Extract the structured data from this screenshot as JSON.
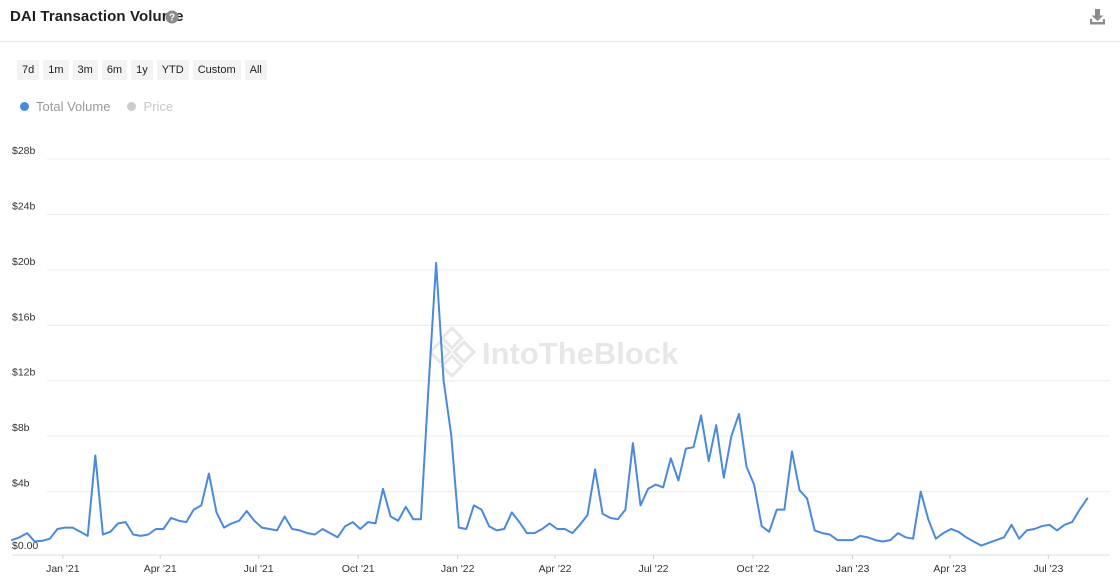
{
  "header": {
    "title": "DAI Transaction Volume",
    "help_icon": "question-circle-icon",
    "download_icon": "download-icon"
  },
  "range_buttons": [
    "7d",
    "1m",
    "3m",
    "6m",
    "1y",
    "YTD",
    "Custom",
    "All"
  ],
  "legend": [
    {
      "label": "Total Volume",
      "color": "#4a89dc",
      "active": true
    },
    {
      "label": "Price",
      "color": "#cccccc",
      "active": false
    }
  ],
  "watermark": "IntoTheBlock",
  "colors": {
    "line": "#4a89dc",
    "grid": "#ececec",
    "axis_text": "#333333"
  },
  "chart_data": {
    "type": "line",
    "title": "DAI Transaction Volume",
    "xlabel": "",
    "ylabel": "",
    "ylim": [
      0,
      28
    ],
    "yticks": [
      {
        "value": 0,
        "label": "$0.00"
      },
      {
        "value": 4,
        "label": "$4b"
      },
      {
        "value": 8,
        "label": "$8b"
      },
      {
        "value": 12,
        "label": "$12b"
      },
      {
        "value": 16,
        "label": "$16b"
      },
      {
        "value": 20,
        "label": "$20b"
      },
      {
        "value": 24,
        "label": "$24b"
      },
      {
        "value": 28,
        "label": "$28b"
      }
    ],
    "xlim": [
      "2020-11-15",
      "2023-08-27"
    ],
    "xticks": [
      {
        "date": "2021-01-01",
        "label": "Jan '21"
      },
      {
        "date": "2021-04-01",
        "label": "Apr '21"
      },
      {
        "date": "2021-07-01",
        "label": "Jul '21"
      },
      {
        "date": "2021-10-01",
        "label": "Oct '21"
      },
      {
        "date": "2022-01-01",
        "label": "Jan '22"
      },
      {
        "date": "2022-04-01",
        "label": "Apr '22"
      },
      {
        "date": "2022-07-01",
        "label": "Jul '22"
      },
      {
        "date": "2022-10-01",
        "label": "Oct '22"
      },
      {
        "date": "2023-01-01",
        "label": "Jan '23"
      },
      {
        "date": "2023-04-01",
        "label": "Apr '23"
      },
      {
        "date": "2023-07-01",
        "label": "Jul '23"
      }
    ],
    "grid": true,
    "legend_position": "top-left",
    "series": [
      {
        "name": "Total Volume",
        "color": "#4a89dc",
        "points": [
          [
            "2020-11-15",
            0.5
          ],
          [
            "2020-11-22",
            0.7
          ],
          [
            "2020-11-29",
            1.0
          ],
          [
            "2020-12-06",
            0.4
          ],
          [
            "2020-12-13",
            0.45
          ],
          [
            "2020-12-20",
            0.6
          ],
          [
            "2020-12-27",
            1.3
          ],
          [
            "2021-01-03",
            1.4
          ],
          [
            "2021-01-10",
            1.4
          ],
          [
            "2021-01-17",
            1.1
          ],
          [
            "2021-01-24",
            0.8
          ],
          [
            "2021-01-31",
            6.6
          ],
          [
            "2021-02-07",
            0.9
          ],
          [
            "2021-02-14",
            1.1
          ],
          [
            "2021-02-21",
            1.7
          ],
          [
            "2021-02-28",
            1.8
          ],
          [
            "2021-03-07",
            0.9
          ],
          [
            "2021-03-14",
            0.8
          ],
          [
            "2021-03-21",
            0.9
          ],
          [
            "2021-03-28",
            1.3
          ],
          [
            "2021-04-04",
            1.3
          ],
          [
            "2021-04-11",
            2.1
          ],
          [
            "2021-04-18",
            1.9
          ],
          [
            "2021-04-25",
            1.8
          ],
          [
            "2021-05-02",
            2.7
          ],
          [
            "2021-05-09",
            3.0
          ],
          [
            "2021-05-16",
            5.3
          ],
          [
            "2021-05-23",
            2.5
          ],
          [
            "2021-05-30",
            1.4
          ],
          [
            "2021-06-06",
            1.7
          ],
          [
            "2021-06-13",
            1.9
          ],
          [
            "2021-06-20",
            2.6
          ],
          [
            "2021-06-27",
            1.9
          ],
          [
            "2021-07-04",
            1.4
          ],
          [
            "2021-07-11",
            1.3
          ],
          [
            "2021-07-18",
            1.2
          ],
          [
            "2021-07-25",
            2.2
          ],
          [
            "2021-08-01",
            1.3
          ],
          [
            "2021-08-08",
            1.2
          ],
          [
            "2021-08-15",
            1.0
          ],
          [
            "2021-08-22",
            0.9
          ],
          [
            "2021-08-29",
            1.3
          ],
          [
            "2021-09-05",
            1.0
          ],
          [
            "2021-09-12",
            0.7
          ],
          [
            "2021-09-19",
            1.5
          ],
          [
            "2021-09-26",
            1.8
          ],
          [
            "2021-10-03",
            1.3
          ],
          [
            "2021-10-10",
            1.8
          ],
          [
            "2021-10-17",
            1.7
          ],
          [
            "2021-10-24",
            4.2
          ],
          [
            "2021-10-31",
            2.2
          ],
          [
            "2021-11-07",
            1.9
          ],
          [
            "2021-11-14",
            2.9
          ],
          [
            "2021-11-21",
            2.0
          ],
          [
            "2021-11-28",
            2.0
          ],
          [
            "2021-12-05",
            11.5
          ],
          [
            "2021-12-12",
            20.5
          ],
          [
            "2021-12-19",
            12.0
          ],
          [
            "2021-12-26",
            8.1
          ],
          [
            "2022-01-02",
            1.4
          ],
          [
            "2022-01-09",
            1.3
          ],
          [
            "2022-01-16",
            3.0
          ],
          [
            "2022-01-23",
            2.7
          ],
          [
            "2022-01-30",
            1.5
          ],
          [
            "2022-02-06",
            1.2
          ],
          [
            "2022-02-13",
            1.3
          ],
          [
            "2022-02-20",
            2.5
          ],
          [
            "2022-02-27",
            1.8
          ],
          [
            "2022-03-06",
            1.0
          ],
          [
            "2022-03-13",
            1.0
          ],
          [
            "2022-03-20",
            1.3
          ],
          [
            "2022-03-27",
            1.7
          ],
          [
            "2022-04-03",
            1.3
          ],
          [
            "2022-04-10",
            1.3
          ],
          [
            "2022-04-17",
            1.0
          ],
          [
            "2022-04-24",
            1.6
          ],
          [
            "2022-05-01",
            2.3
          ],
          [
            "2022-05-08",
            5.6
          ],
          [
            "2022-05-15",
            2.4
          ],
          [
            "2022-05-22",
            2.1
          ],
          [
            "2022-05-29",
            2.0
          ],
          [
            "2022-06-05",
            2.7
          ],
          [
            "2022-06-12",
            7.5
          ],
          [
            "2022-06-19",
            3.0
          ],
          [
            "2022-06-26",
            4.2
          ],
          [
            "2022-07-03",
            4.5
          ],
          [
            "2022-07-10",
            4.3
          ],
          [
            "2022-07-17",
            6.4
          ],
          [
            "2022-07-24",
            4.8
          ],
          [
            "2022-07-31",
            7.1
          ],
          [
            "2022-08-07",
            7.2
          ],
          [
            "2022-08-14",
            9.5
          ],
          [
            "2022-08-21",
            6.2
          ],
          [
            "2022-08-28",
            8.8
          ],
          [
            "2022-09-04",
            5.0
          ],
          [
            "2022-09-11",
            8.0
          ],
          [
            "2022-09-18",
            9.6
          ],
          [
            "2022-09-25",
            5.8
          ],
          [
            "2022-10-02",
            4.5
          ],
          [
            "2022-10-09",
            1.5
          ],
          [
            "2022-10-16",
            1.1
          ],
          [
            "2022-10-23",
            2.7
          ],
          [
            "2022-10-30",
            2.7
          ],
          [
            "2022-11-06",
            6.9
          ],
          [
            "2022-11-13",
            4.1
          ],
          [
            "2022-11-20",
            3.5
          ],
          [
            "2022-11-27",
            1.2
          ],
          [
            "2022-12-04",
            1.0
          ],
          [
            "2022-12-11",
            0.9
          ],
          [
            "2022-12-18",
            0.5
          ],
          [
            "2022-12-25",
            0.5
          ],
          [
            "2023-01-01",
            0.5
          ],
          [
            "2023-01-08",
            0.8
          ],
          [
            "2023-01-15",
            0.7
          ],
          [
            "2023-01-22",
            0.5
          ],
          [
            "2023-01-29",
            0.4
          ],
          [
            "2023-02-05",
            0.5
          ],
          [
            "2023-02-12",
            1.0
          ],
          [
            "2023-02-19",
            0.7
          ],
          [
            "2023-02-26",
            0.6
          ],
          [
            "2023-03-05",
            4.0
          ],
          [
            "2023-03-12",
            2.0
          ],
          [
            "2023-03-19",
            0.6
          ],
          [
            "2023-03-26",
            1.0
          ],
          [
            "2023-04-02",
            1.3
          ],
          [
            "2023-04-09",
            1.1
          ],
          [
            "2023-04-16",
            0.7
          ],
          [
            "2023-04-23",
            0.4
          ],
          [
            "2023-04-30",
            0.1
          ],
          [
            "2023-05-07",
            0.3
          ],
          [
            "2023-05-14",
            0.5
          ],
          [
            "2023-05-21",
            0.7
          ],
          [
            "2023-05-28",
            1.6
          ],
          [
            "2023-06-04",
            0.6
          ],
          [
            "2023-06-11",
            1.2
          ],
          [
            "2023-06-18",
            1.3
          ],
          [
            "2023-06-25",
            1.5
          ],
          [
            "2023-07-02",
            1.6
          ],
          [
            "2023-07-09",
            1.2
          ],
          [
            "2023-07-16",
            1.6
          ],
          [
            "2023-07-23",
            1.8
          ],
          [
            "2023-07-30",
            2.7
          ],
          [
            "2023-08-06",
            3.5
          ]
        ]
      }
    ]
  }
}
